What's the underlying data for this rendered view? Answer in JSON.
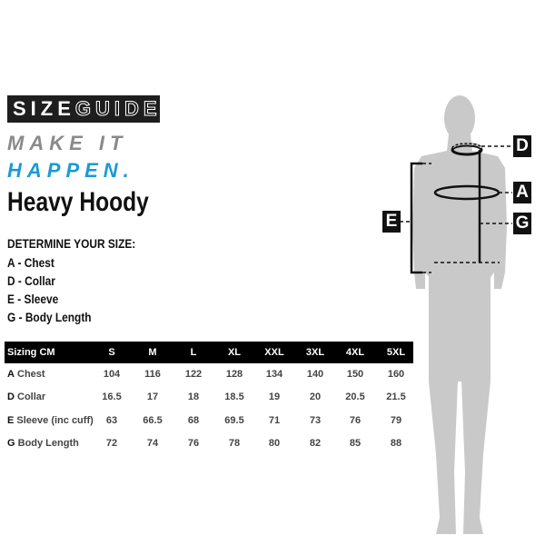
{
  "brand": {
    "bold": "SIZE",
    "outline": "GUIDE"
  },
  "tagline": {
    "line1": "MAKE IT",
    "line2": "HAPPEN.",
    "line1_color": "#8a8a8a",
    "line2_color": "#1a9ad6"
  },
  "product_title": "Heavy Hoody",
  "determine": {
    "heading": "DETERMINE YOUR SIZE:",
    "items": [
      "A - Chest",
      "D - Collar",
      "E - Sleeve",
      "G - Body Length"
    ]
  },
  "figure": {
    "labels": {
      "D": "D",
      "A": "A",
      "G": "G",
      "E": "E"
    }
  },
  "table": {
    "header": "Sizing CM",
    "sizes": [
      "S",
      "M",
      "L",
      "XL",
      "XXL",
      "3XL",
      "4XL",
      "5XL"
    ],
    "rows": [
      {
        "code": "A",
        "label": "Chest",
        "values": [
          "104",
          "116",
          "122",
          "128",
          "134",
          "140",
          "150",
          "160"
        ]
      },
      {
        "code": "D",
        "label": "Collar",
        "values": [
          "16.5",
          "17",
          "18",
          "18.5",
          "19",
          "20",
          "20.5",
          "21.5"
        ]
      },
      {
        "code": "E",
        "label": "Sleeve (inc cuff)",
        "values": [
          "63",
          "66.5",
          "68",
          "69.5",
          "71",
          "73",
          "76",
          "79"
        ]
      },
      {
        "code": "G",
        "label": "Body Length",
        "values": [
          "72",
          "74",
          "76",
          "78",
          "80",
          "82",
          "85",
          "88"
        ]
      }
    ]
  }
}
